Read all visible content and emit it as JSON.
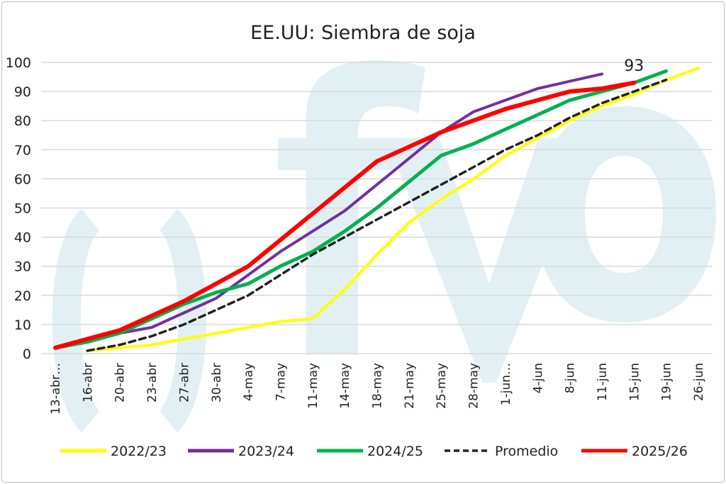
{
  "chart_data": {
    "type": "line",
    "title": "EE.UU: Siembra de soja",
    "xlabel": "",
    "ylabel": "",
    "ylim": [
      0,
      100
    ],
    "yticks": [
      0,
      10,
      20,
      30,
      40,
      50,
      60,
      70,
      80,
      90,
      100
    ],
    "grid": true,
    "legend_position": "bottom",
    "watermark": "fyo",
    "categories": [
      "13-abr…",
      "16-abr",
      "20-abr",
      "23-abr",
      "27-abr",
      "30-abr",
      "4-may",
      "7-may",
      "11-may",
      "14-may",
      "18-may",
      "21-may",
      "25-may",
      "28-may",
      "1-jun…",
      "4-jun",
      "8-jun",
      "11-jun",
      "15-jun",
      "19-jun",
      "26-jun"
    ],
    "series": [
      {
        "name": "2022/23",
        "color": "#ffff00",
        "dash": false,
        "width": 4,
        "values": [
          null,
          1,
          2,
          3,
          5,
          7,
          9,
          11,
          12,
          22,
          34,
          45,
          53,
          60,
          68,
          74,
          80,
          85,
          89,
          94,
          98
        ]
      },
      {
        "name": "2023/24",
        "color": "#7030a0",
        "dash": false,
        "width": 4,
        "values": [
          null,
          4,
          7,
          9,
          14,
          19,
          27,
          35,
          42,
          49,
          58,
          67,
          76,
          83,
          87,
          91,
          93.5,
          96,
          null,
          null,
          null
        ]
      },
      {
        "name": "2024/25",
        "color": "#00b050",
        "dash": false,
        "width": 5,
        "values": [
          2,
          4,
          7,
          12,
          17,
          21,
          24,
          30,
          35,
          42,
          50,
          59,
          68,
          72,
          77,
          82,
          87,
          90,
          93,
          97,
          null
        ]
      },
      {
        "name": "Promedio",
        "color": "#222222",
        "dash": true,
        "width": 3.5,
        "values": [
          null,
          1,
          3,
          6,
          10,
          15,
          20,
          27,
          34,
          40,
          46,
          52,
          58,
          64,
          70,
          75,
          81,
          86,
          90,
          94,
          null
        ]
      },
      {
        "name": "2025/26",
        "color": "#ff0000",
        "dash": false,
        "width": 6,
        "values": [
          2,
          5,
          8,
          13,
          18,
          24,
          30,
          39,
          48,
          57,
          66,
          71,
          76,
          80,
          84,
          87,
          90,
          91,
          93,
          null,
          null
        ]
      }
    ],
    "annotations": [
      {
        "series": "2025/26",
        "category": "15-jun",
        "text": "93"
      }
    ]
  }
}
